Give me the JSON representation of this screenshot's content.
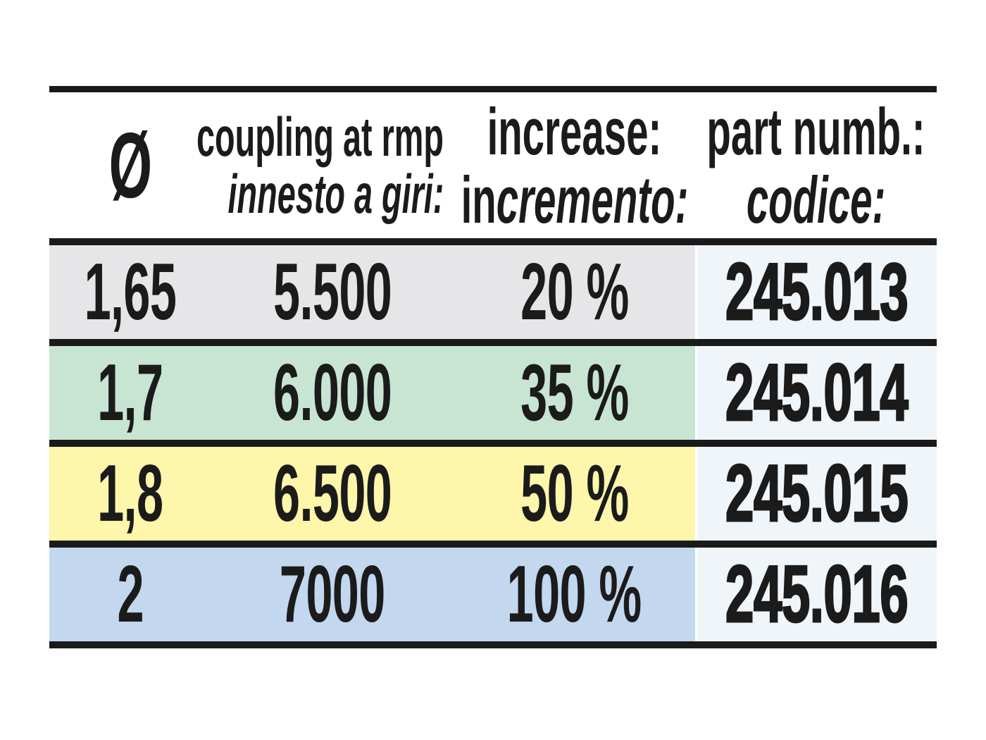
{
  "header": {
    "diameter_symbol": "Ø",
    "coupling": {
      "en": "coupling at rmp",
      "it": "innesto a giri:"
    },
    "increase": {
      "en": "increase:",
      "it_roman": "in",
      "it_italic": "cremento:"
    },
    "part_number": {
      "en": "part numb.:",
      "it": "codice:"
    }
  },
  "rows": [
    {
      "diameter": "1,65",
      "coupling_at_rpm": "5.500",
      "increase": "20 %",
      "part_number": "245.013",
      "color": "#e6e6e8"
    },
    {
      "diameter": "1,7",
      "coupling_at_rpm": "6.000",
      "increase": "35 %",
      "part_number": "245.014",
      "color": "#c8e4d3"
    },
    {
      "diameter": "1,8",
      "coupling_at_rpm": "6.500",
      "increase": "50 %",
      "part_number": "245.015",
      "color": "#fdf6ab"
    },
    {
      "diameter": "2",
      "coupling_at_rpm": "7000",
      "increase": "100 %",
      "part_number": "245.016",
      "color": "#c3d7ef"
    }
  ],
  "colors": {
    "page_bg": "#ffffff",
    "rule": "#1a1a1a",
    "text": "#1b1b1b",
    "part_column_bg": "#f0f5f9",
    "column_divider": "#ffffff"
  }
}
